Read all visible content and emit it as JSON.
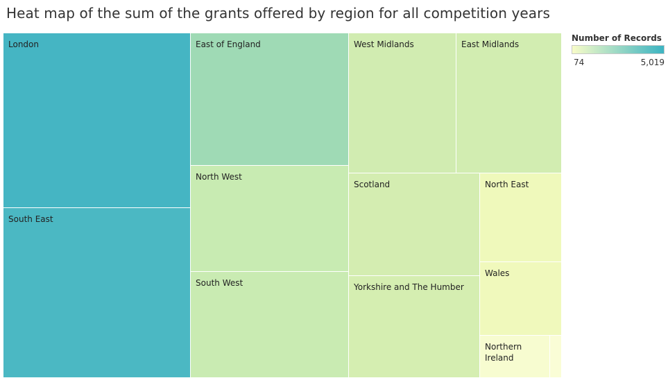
{
  "chart_data": {
    "type": "heatmap",
    "title": "Heat map of the sum of the grants offered by region for all competition years",
    "color_measure": "Number of Records",
    "color_range": [
      74,
      5019
    ],
    "color_range_labels": [
      "74",
      "5,019"
    ],
    "color_scale": [
      "#f8fcc8",
      "#3cb4c2"
    ],
    "cells": [
      {
        "label": "London",
        "value": 5019,
        "color": "#45b5c3"
      },
      {
        "label": "South East",
        "value": 4780,
        "color": "#4bb8c3"
      },
      {
        "label": "East of England",
        "value": 2600,
        "color": "#9fdab5"
      },
      {
        "label": "North West",
        "value": 1650,
        "color": "#c8ebb2"
      },
      {
        "label": "South West",
        "value": 1580,
        "color": "#c9ebb2"
      },
      {
        "label": "West Midlands",
        "value": 1350,
        "color": "#d1ecb1"
      },
      {
        "label": "East Midlands",
        "value": 1300,
        "color": "#d2edb1"
      },
      {
        "label": "Scotland",
        "value": 1250,
        "color": "#d4edb1"
      },
      {
        "label": "Yorkshire and The Humber",
        "value": 1200,
        "color": "#d5eeb1"
      },
      {
        "label": "North East",
        "value": 500,
        "color": "#eff9bb"
      },
      {
        "label": "Wales",
        "value": 450,
        "color": "#f0f9bc"
      },
      {
        "label": "Northern Ireland",
        "value": 200,
        "color": "#f7fcd0"
      },
      {
        "label": "",
        "value": 74,
        "color": "#fafdd6"
      }
    ]
  }
}
